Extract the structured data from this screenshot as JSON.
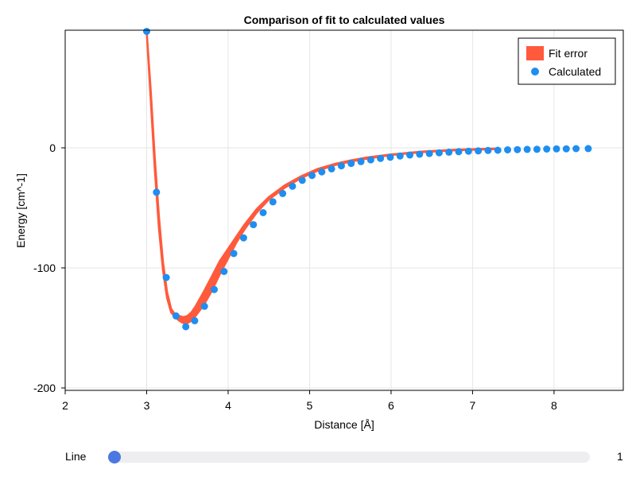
{
  "chart_data": {
    "type": "scatter",
    "title": "Comparison of fit to calculated values",
    "xlabel": "Distance   [Å]",
    "ylabel": "Energy   [cm^-1]",
    "xlim": [
      2,
      8.85
    ],
    "ylim": [
      -202,
      98
    ],
    "xticks": [
      2,
      3,
      4,
      5,
      6,
      7,
      8
    ],
    "yticks": [
      -200,
      -100,
      0
    ],
    "grid": true,
    "legend_position": "top-right",
    "colors": {
      "fit": "#ff5a3c",
      "calculated": "#1e8ef0"
    },
    "series": [
      {
        "name": "Fit error",
        "kind": "band",
        "x": [
          3.0,
          3.05,
          3.1,
          3.15,
          3.2,
          3.25,
          3.3,
          3.35,
          3.4,
          3.45,
          3.5,
          3.55,
          3.6,
          3.7,
          3.8,
          3.9,
          4.0,
          4.1,
          4.2,
          4.35,
          4.5,
          4.7,
          4.9,
          5.1,
          5.3,
          5.5,
          5.7,
          6.0,
          6.4,
          6.8,
          7.3
        ],
        "lower": [
          97,
          40,
          -18,
          -67,
          -102,
          -125,
          -137,
          -141,
          -144,
          -146,
          -146,
          -144,
          -140,
          -131,
          -119,
          -105,
          -92,
          -79,
          -68,
          -54,
          -43,
          -33,
          -25,
          -19,
          -14.5,
          -11.5,
          -9,
          -6,
          -3.5,
          -2,
          -1
        ],
        "upper": [
          97,
          48,
          -8,
          -57,
          -95,
          -120,
          -134,
          -139,
          -140,
          -141,
          -140,
          -137,
          -132,
          -120,
          -107,
          -94,
          -84,
          -74,
          -64,
          -51,
          -41,
          -31,
          -23.5,
          -17.5,
          -13.5,
          -10.5,
          -8,
          -5.5,
          -3,
          -1.5,
          -0.5
        ]
      },
      {
        "name": "Calculated",
        "kind": "points",
        "x": [
          3.0,
          3.12,
          3.24,
          3.36,
          3.48,
          3.59,
          3.71,
          3.83,
          3.95,
          4.07,
          4.19,
          4.31,
          4.43,
          4.55,
          4.67,
          4.79,
          4.91,
          5.03,
          5.15,
          5.27,
          5.39,
          5.51,
          5.63,
          5.75,
          5.87,
          5.99,
          6.11,
          6.23,
          6.35,
          6.47,
          6.59,
          6.71,
          6.83,
          6.95,
          7.07,
          7.19,
          7.31,
          7.43,
          7.55,
          7.67,
          7.79,
          7.91,
          8.03,
          8.15,
          8.27,
          8.42
        ],
        "y": [
          97,
          -37,
          -108,
          -140,
          -149,
          -144,
          -132,
          -118,
          -103,
          -88,
          -75,
          -64,
          -54,
          -45,
          -38,
          -32,
          -27,
          -23,
          -20,
          -17.5,
          -15,
          -13,
          -11.5,
          -10,
          -8.8,
          -7.8,
          -6.8,
          -6,
          -5.3,
          -4.7,
          -4.1,
          -3.6,
          -3.2,
          -2.8,
          -2.5,
          -2.2,
          -2,
          -1.7,
          -1.5,
          -1.3,
          -1.2,
          -1,
          -0.9,
          -0.8,
          -0.7,
          -0.6
        ]
      }
    ]
  },
  "slider": {
    "label": "Line",
    "value": "1",
    "position": 0
  }
}
